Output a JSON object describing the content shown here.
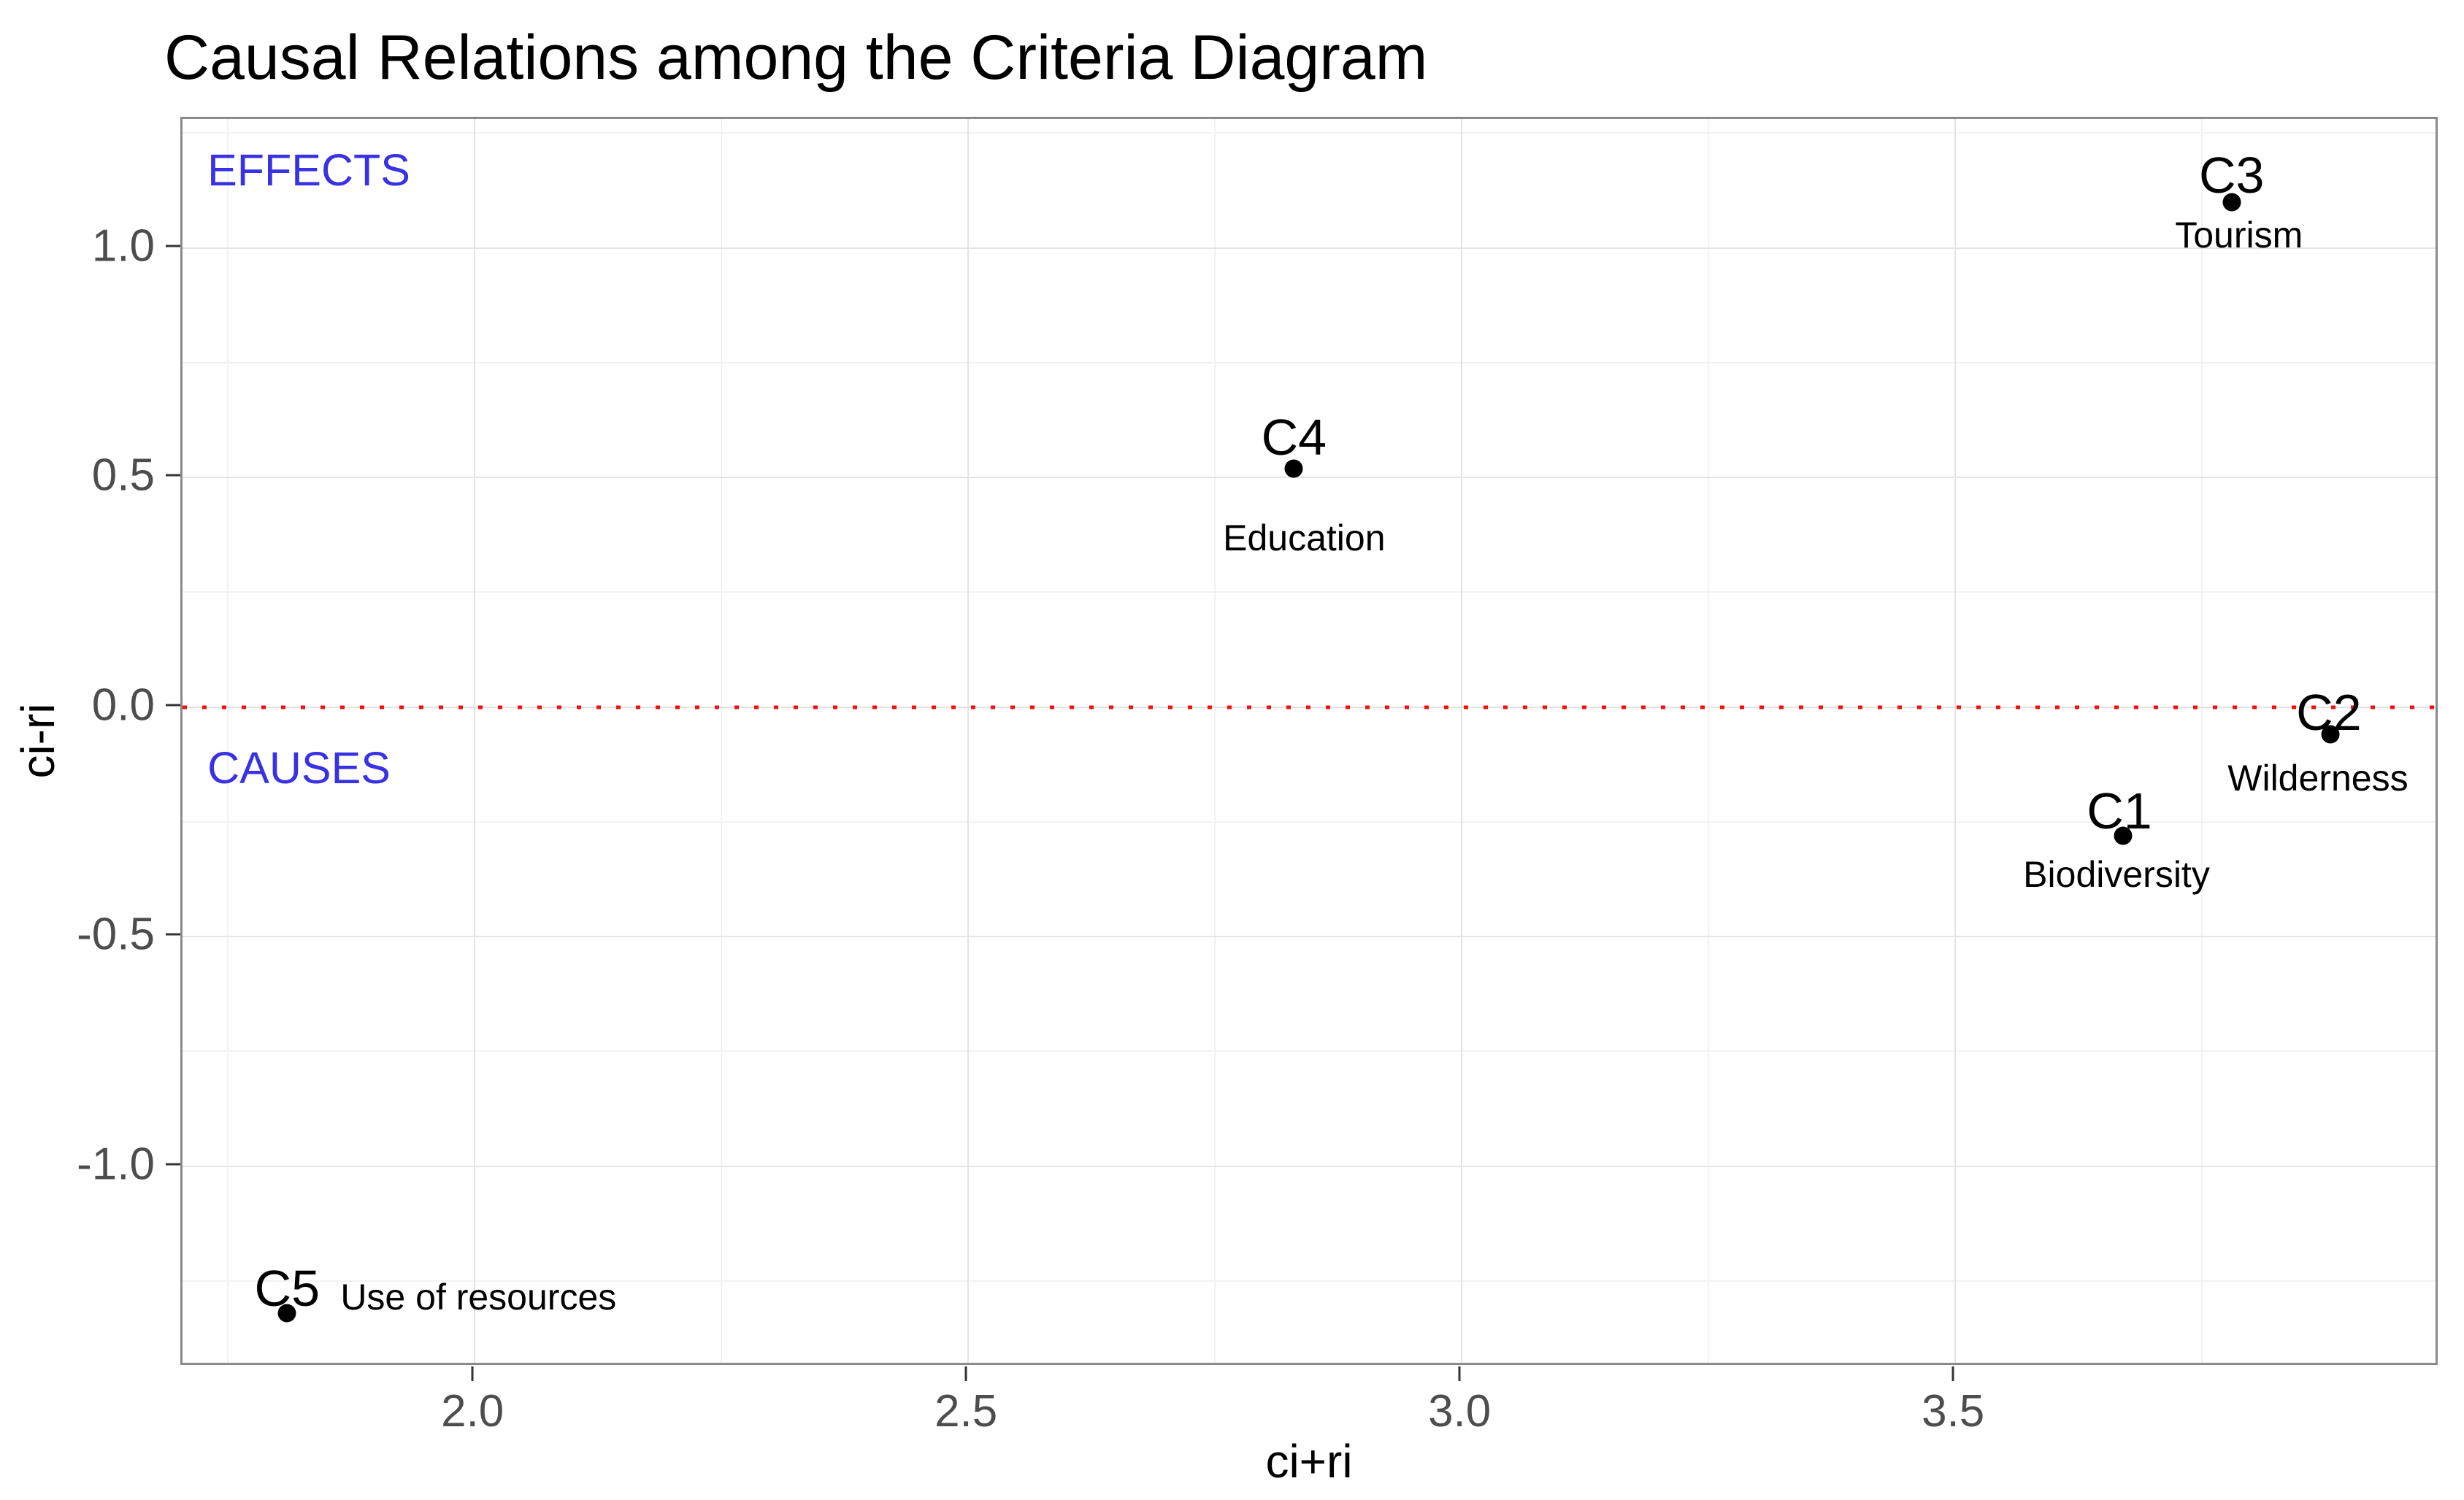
{
  "page": {
    "background": "#FFFFFF"
  },
  "chart_data": {
    "type": "scatter",
    "title": "Causal Relations among the Criteria Diagram",
    "xlabel": "ci+ri",
    "ylabel": "ci-ri",
    "xlim": [
      1.704,
      3.991
    ],
    "ylim": [
      -1.438,
      1.281
    ],
    "grid": true,
    "legend": false,
    "x_major_ticks": {
      "values": [
        2.0,
        2.5,
        3.0,
        3.5
      ],
      "labels": [
        "2.0",
        "2.5",
        "3.0",
        "3.5"
      ]
    },
    "x_minor_ticks": [
      1.75,
      2.25,
      2.75,
      3.25,
      3.75
    ],
    "y_major_ticks": {
      "values": [
        1.0,
        0.5,
        0.0,
        -0.5,
        -1.0
      ],
      "labels": [
        "1.0",
        "0.5",
        "0.0",
        "-0.5",
        "-1.0"
      ]
    },
    "y_minor_ticks": [
      1.25,
      0.75,
      0.25,
      -0.25,
      -0.75,
      -1.25
    ],
    "reference_line": {
      "y": 0,
      "style": "dotted",
      "color": "#F01111"
    },
    "points": [
      {
        "id": "C1",
        "name": "Biodiversity",
        "x": 3.67,
        "y": -0.28,
        "id_offset": [
          -5,
          -34
        ],
        "name_offset": [
          -9,
          53
        ]
      },
      {
        "id": "C2",
        "name": "Wilderness",
        "x": 3.88,
        "y": -0.06,
        "id_offset": [
          -2,
          -30
        ],
        "name_offset": [
          -17,
          60
        ]
      },
      {
        "id": "C3",
        "name": "Tourism",
        "x": 3.78,
        "y": 1.1,
        "id_offset": [
          0,
          -37
        ],
        "name_offset": [
          10,
          45
        ]
      },
      {
        "id": "C4",
        "name": "Education",
        "x": 2.83,
        "y": 0.52,
        "id_offset": [
          0,
          -43
        ],
        "name_offset": [
          14,
          95
        ]
      },
      {
        "id": "C5",
        "name": "Use of resources",
        "x": 1.81,
        "y": -1.32,
        "id_offset": [
          0,
          -34
        ],
        "name_offset": [
          262,
          -22
        ]
      }
    ],
    "annotations": [
      {
        "text": "EFFECTS",
        "x": 1.832,
        "y": 1.169,
        "color": "#3832E2"
      },
      {
        "text": "CAUSES",
        "x": 1.822,
        "y": -0.133,
        "color": "#3832E2"
      }
    ],
    "colors": {
      "point": "#000000",
      "label_text": "#000000",
      "major_grid": "#E4E4E4",
      "minor_grid": "#F2F2F2",
      "panel_border": "#8A8A8A",
      "tick_mark": "#333333",
      "tick_label": "#4D4D4D",
      "title": "#000000"
    }
  }
}
